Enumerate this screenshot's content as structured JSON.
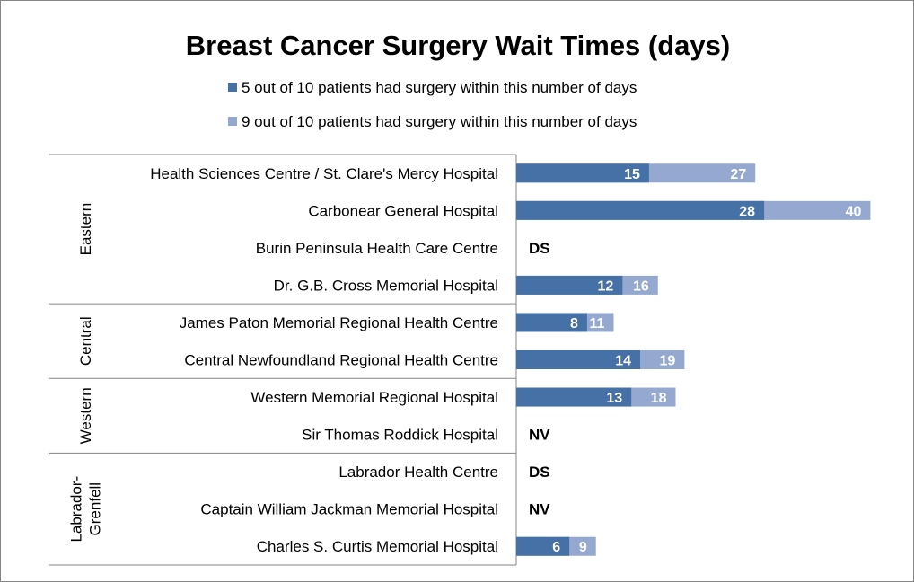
{
  "chart_data": {
    "type": "bar",
    "orientation": "horizontal",
    "title": "Breast Cancer Surgery Wait Times (days)",
    "legend_position": "top",
    "grid": false,
    "xlim": [
      0,
      45
    ],
    "colors": {
      "median": "#4571A6",
      "p90": "#95A9D0"
    },
    "series": [
      {
        "name": "5 out of 10 patients had surgery within this number of days",
        "values": [
          15,
          28,
          null,
          12,
          8,
          14,
          13,
          null,
          null,
          null,
          6
        ]
      },
      {
        "name": "9 out of 10 patients had surgery within this number of days",
        "values": [
          27,
          40,
          null,
          16,
          11,
          19,
          18,
          null,
          null,
          null,
          9
        ]
      }
    ],
    "categories": [
      "Health Sciences Centre / St. Clare's Mercy Hospital",
      "Carbonear General Hospital",
      "Burin Peninsula Health Care Centre",
      "Dr. G.B. Cross Memorial Hospital",
      "James Paton Memorial Regional Health Centre",
      "Central Newfoundland Regional Health Centre",
      "Western Memorial Regional Hospital",
      "Sir Thomas Roddick Hospital",
      "Labrador Health Centre",
      "Captain William Jackman Memorial Hospital",
      "Charles S. Curtis Memorial Hospital"
    ],
    "notes": [
      null,
      null,
      "DS",
      null,
      null,
      null,
      null,
      "NV",
      "DS",
      "NV",
      null
    ],
    "groups": [
      {
        "name": "Eastern",
        "lines": [
          "Eastern"
        ],
        "count": 4
      },
      {
        "name": "Central",
        "lines": [
          "Central"
        ],
        "count": 2
      },
      {
        "name": "Western",
        "lines": [
          "Western"
        ],
        "count": 2
      },
      {
        "name": "Labrador-Grenfell",
        "lines": [
          "Labrador-",
          "Grenfell"
        ],
        "count": 3
      }
    ]
  }
}
